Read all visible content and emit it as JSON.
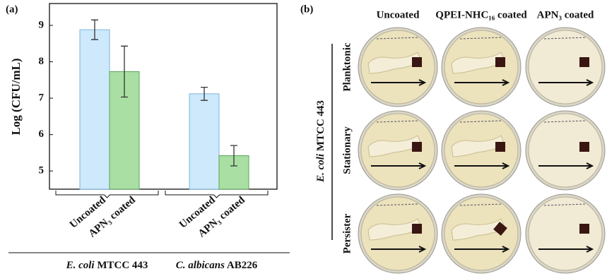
{
  "chart_data": {
    "type": "bar",
    "label": "(a)",
    "ylabel": "Log (CFU/mL)",
    "categories": [
      "Uncoated",
      "APN₃ coated",
      "Uncoated",
      "APN₃ coated"
    ],
    "values": [
      8.88,
      7.73,
      7.12,
      5.42
    ],
    "errors": [
      0.27,
      0.7,
      0.18,
      0.28
    ],
    "colors": [
      "#cde9fb",
      "#a9dfa3",
      "#cde9fb",
      "#a9dfa3"
    ],
    "groups": [
      {
        "italic": "E. coli",
        "text": "MTCC 443"
      },
      {
        "italic": "C. albicans",
        "text": "AB226"
      }
    ],
    "ylim": [
      4.5,
      9.6
    ],
    "yticks": [
      5,
      6,
      7,
      8,
      9
    ]
  },
  "panel_b": {
    "label": "(b)",
    "columns": [
      "Uncoated",
      "QPEI-NHC₁₆ coated",
      "APN₃ coated"
    ],
    "rows": [
      "Planktonic",
      "Stationary",
      "Persister"
    ],
    "side_label": {
      "italic": "E. coli",
      "text": "MTCC 443"
    }
  }
}
